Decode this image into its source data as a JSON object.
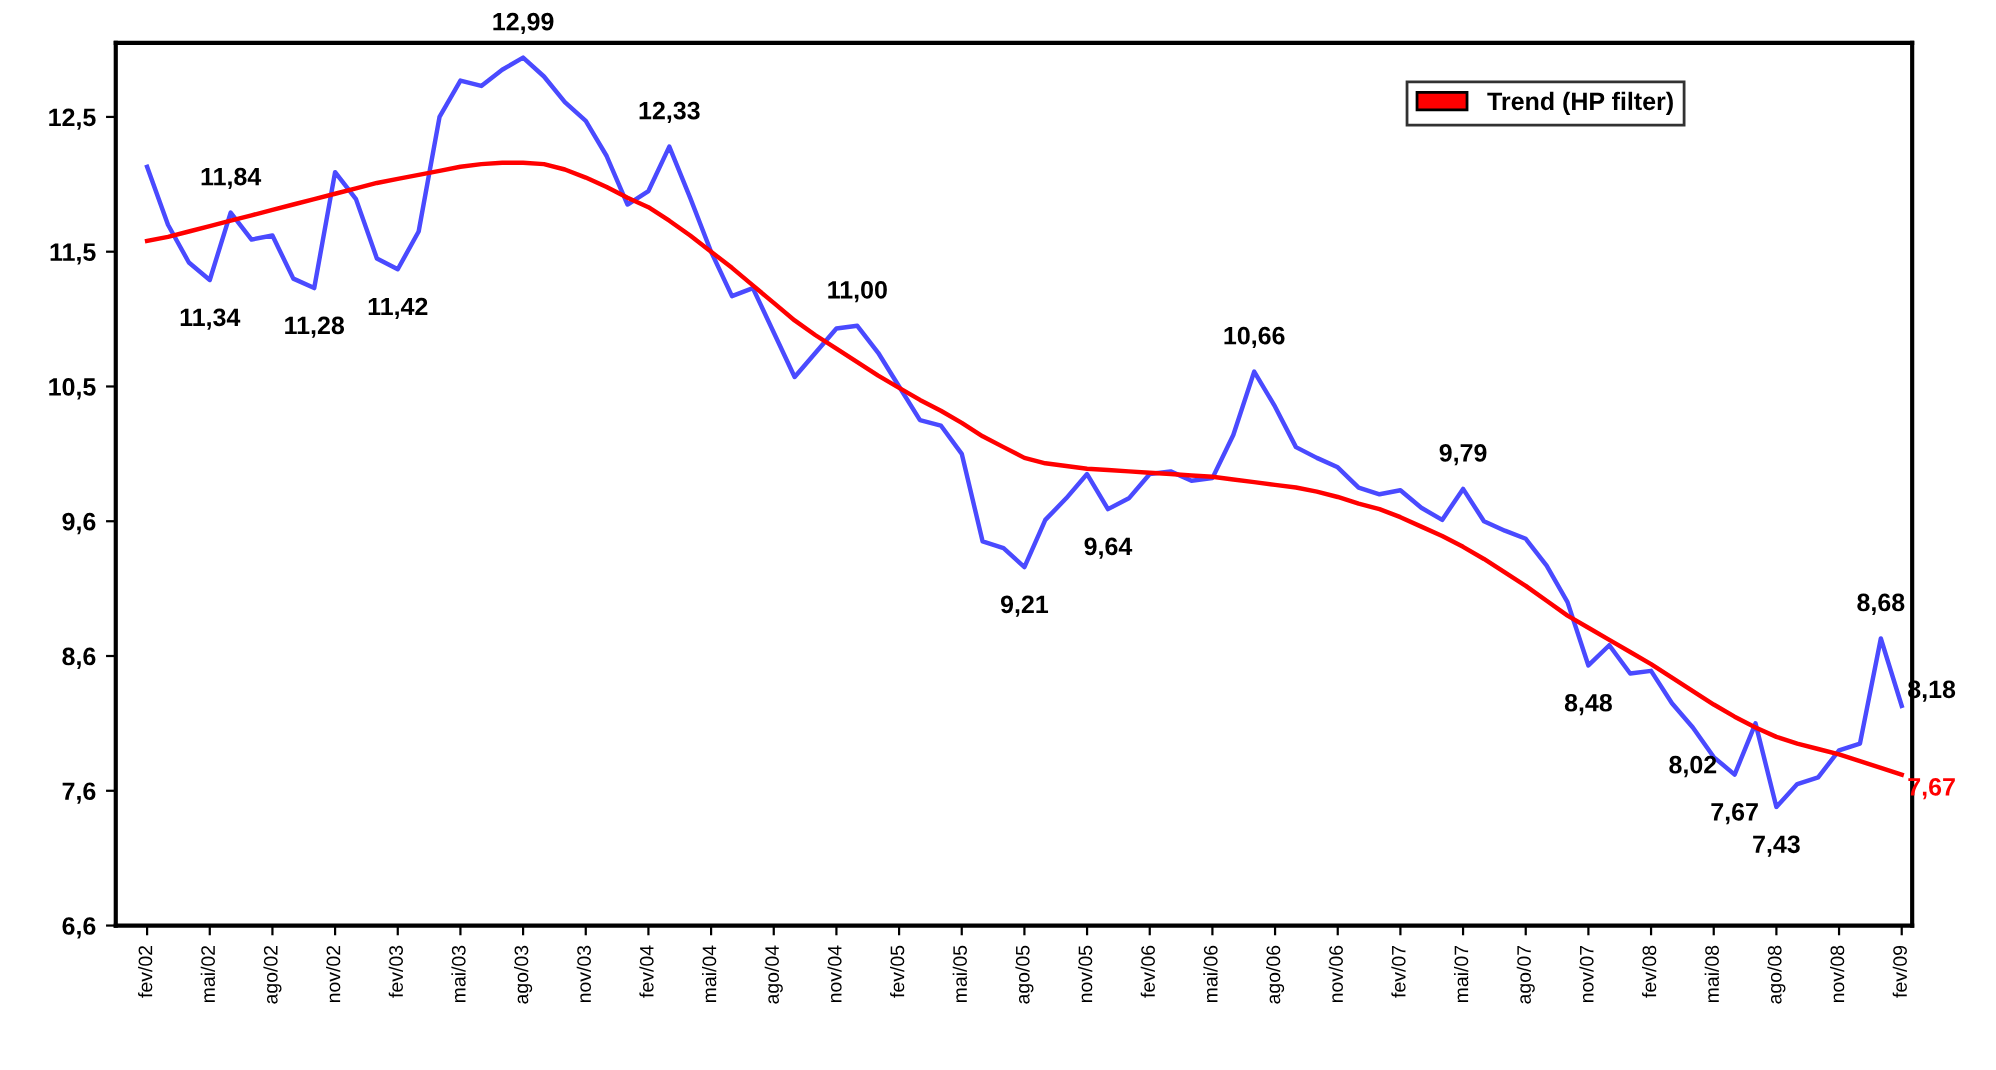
{
  "chart_data": {
    "type": "line",
    "categories": [
      "fev/02",
      null,
      null,
      "mai/02",
      null,
      null,
      "ago/02",
      null,
      null,
      "nov/02",
      null,
      null,
      "fev/03",
      null,
      null,
      "mai/03",
      null,
      null,
      "ago/03",
      null,
      null,
      "nov/03",
      null,
      null,
      "fev/04",
      null,
      null,
      "mai/04",
      null,
      null,
      "ago/04",
      null,
      null,
      "nov/04",
      null,
      null,
      "fev/05",
      null,
      null,
      "mai/05",
      null,
      null,
      "ago/05",
      null,
      null,
      "nov/05",
      null,
      null,
      "fev/06",
      null,
      null,
      "mai/06",
      null,
      null,
      "ago/06",
      null,
      null,
      "nov/06",
      null,
      null,
      "fev/07",
      null,
      null,
      "mai/07",
      null,
      null,
      "ago/07",
      null,
      null,
      "nov/07",
      null,
      null,
      "fev/08",
      null,
      null,
      "mai/08",
      null,
      null,
      "ago/08",
      null,
      null,
      "nov/08",
      null,
      null,
      "fev/09"
    ],
    "series": [
      {
        "color": "#4a4aff",
        "values": [
          12.18,
          11.75,
          11.47,
          11.34,
          11.84,
          11.64,
          11.67,
          11.35,
          11.28,
          12.14,
          11.94,
          11.5,
          11.42,
          11.7,
          12.55,
          12.82,
          12.78,
          12.9,
          12.99,
          12.85,
          12.66,
          12.52,
          12.26,
          11.9,
          12.0,
          12.33,
          11.95,
          11.55,
          11.22,
          11.28,
          10.95,
          10.62,
          10.8,
          10.98,
          11.0,
          10.8,
          10.55,
          10.3,
          10.26,
          10.05,
          9.4,
          9.35,
          9.21,
          9.56,
          9.72,
          9.9,
          9.64,
          9.72,
          9.9,
          9.92,
          9.85,
          9.87,
          10.19,
          10.66,
          10.4,
          10.1,
          10.02,
          9.95,
          9.8,
          9.75,
          9.78,
          9.65,
          9.56,
          9.79,
          9.55,
          9.48,
          9.42,
          9.22,
          8.95,
          8.48,
          8.63,
          8.42,
          8.44,
          8.2,
          8.02,
          7.8,
          7.67,
          8.05,
          7.43,
          7.6,
          7.65,
          7.85,
          7.9,
          8.68,
          8.18
        ],
        "value_labels": [
          null,
          null,
          null,
          "11,34",
          "11,84",
          null,
          null,
          null,
          "11,28",
          null,
          null,
          null,
          "11,42",
          null,
          null,
          null,
          null,
          null,
          "12,99",
          null,
          null,
          null,
          null,
          null,
          null,
          "12,33",
          null,
          null,
          null,
          null,
          null,
          null,
          null,
          null,
          "11,00",
          null,
          null,
          null,
          null,
          null,
          null,
          null,
          "9,21",
          null,
          null,
          null,
          "9,64",
          null,
          null,
          null,
          null,
          null,
          null,
          "10,66",
          null,
          null,
          null,
          null,
          null,
          null,
          null,
          null,
          null,
          "9,79",
          null,
          null,
          null,
          null,
          null,
          "8,48",
          null,
          null,
          null,
          null,
          "8,02",
          null,
          "7,67",
          null,
          "7,43",
          null,
          null,
          null,
          null,
          "8,68",
          "8,18"
        ]
      },
      {
        "name": "Trend (HP filter)",
        "color": "#ff0000",
        "values": [
          11.63,
          11.66,
          11.7,
          11.74,
          11.78,
          11.82,
          11.86,
          11.9,
          11.94,
          11.98,
          12.02,
          12.06,
          12.09,
          12.12,
          12.15,
          12.18,
          12.2,
          12.21,
          12.21,
          12.2,
          12.16,
          12.1,
          12.03,
          11.95,
          11.88,
          11.78,
          11.67,
          11.55,
          11.43,
          11.3,
          11.17,
          11.04,
          10.93,
          10.83,
          10.73,
          10.63,
          10.54,
          10.45,
          10.37,
          10.28,
          10.18,
          10.1,
          10.02,
          9.98,
          9.96,
          9.94,
          9.93,
          9.92,
          9.91,
          9.9,
          9.89,
          9.88,
          9.86,
          9.84,
          9.82,
          9.8,
          9.77,
          9.73,
          9.68,
          9.64,
          9.58,
          9.51,
          9.44,
          9.36,
          9.27,
          9.17,
          9.07,
          8.96,
          8.85,
          8.76,
          8.67,
          8.58,
          8.49,
          8.39,
          8.29,
          8.19,
          8.1,
          8.02,
          7.95,
          7.9,
          7.86,
          7.82,
          7.77,
          7.72,
          7.67
        ],
        "value_labels": [
          null,
          null,
          null,
          null,
          null,
          null,
          null,
          null,
          null,
          null,
          null,
          null,
          null,
          null,
          null,
          null,
          null,
          null,
          null,
          null,
          null,
          null,
          null,
          null,
          null,
          null,
          null,
          null,
          null,
          null,
          null,
          null,
          null,
          null,
          null,
          null,
          null,
          null,
          null,
          null,
          null,
          null,
          null,
          null,
          null,
          null,
          null,
          null,
          null,
          null,
          null,
          null,
          null,
          null,
          null,
          null,
          null,
          null,
          null,
          null,
          null,
          null,
          null,
          null,
          null,
          null,
          null,
          null,
          null,
          null,
          null,
          null,
          null,
          null,
          null,
          null,
          null,
          null,
          null,
          null,
          null,
          null,
          null,
          null,
          "7,67"
        ]
      }
    ],
    "ylim": [
      6.55,
      13.1
    ],
    "yticks": [
      {
        "value": 6.55,
        "label": "6,6"
      },
      {
        "value": 7.55,
        "label": "7,6"
      },
      {
        "value": 8.55,
        "label": "8,6"
      },
      {
        "value": 9.55,
        "label": "9,6"
      },
      {
        "value": 10.55,
        "label": "10,5"
      },
      {
        "value": 11.55,
        "label": "11,5"
      },
      {
        "value": 12.55,
        "label": "12,5"
      }
    ],
    "grid": false,
    "legend": "top right",
    "marker": "none",
    "line_style": "solid"
  }
}
